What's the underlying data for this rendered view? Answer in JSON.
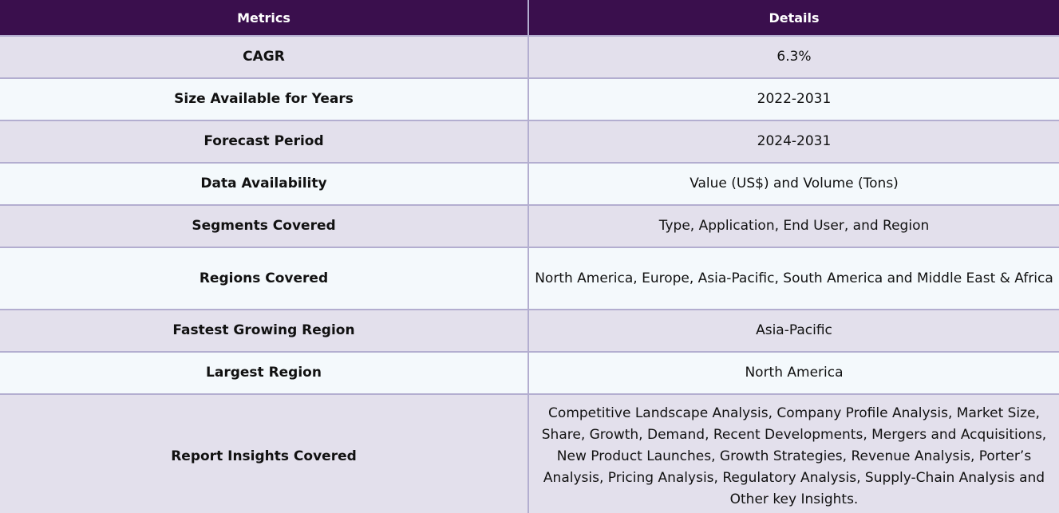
{
  "header": {
    "metrics": "Metrics",
    "details": "Details"
  },
  "rows": [
    {
      "metric": "CAGR",
      "detail": "6.3%"
    },
    {
      "metric": "Size Available for Years",
      "detail": "2022-2031"
    },
    {
      "metric": "Forecast Period",
      "detail": "2024-2031"
    },
    {
      "metric": "Data Availability",
      "detail": "Value (US$) and Volume (Tons)"
    },
    {
      "metric": "Segments Covered",
      "detail": "Type, Application, End User, and Region"
    },
    {
      "metric": "Regions Covered",
      "detail": "North America, Europe, Asia-Pacific, South America and Middle East & Africa"
    },
    {
      "metric": "Fastest Growing Region",
      "detail": "Asia-Pacific"
    },
    {
      "metric": "Largest Region",
      "detail": "North America"
    },
    {
      "metric": "Report Insights Covered",
      "detail": "Competitive Landscape Analysis, Company Profile Analysis, Market Size, Share, Growth, Demand, Recent Developments, Mergers and Acquisitions, New Product Launches, Growth Strategies, Revenue Analysis, Porter’s Analysis, Pricing Analysis, Regulatory Analysis, Supply-Chain Analysis and Other key Insights."
    }
  ],
  "colors": {
    "header_bg": "#3a0f4d",
    "row_odd_bg": "#e3e0ec",
    "row_even_bg": "#f4f9fc",
    "border": "#b3aed0"
  }
}
